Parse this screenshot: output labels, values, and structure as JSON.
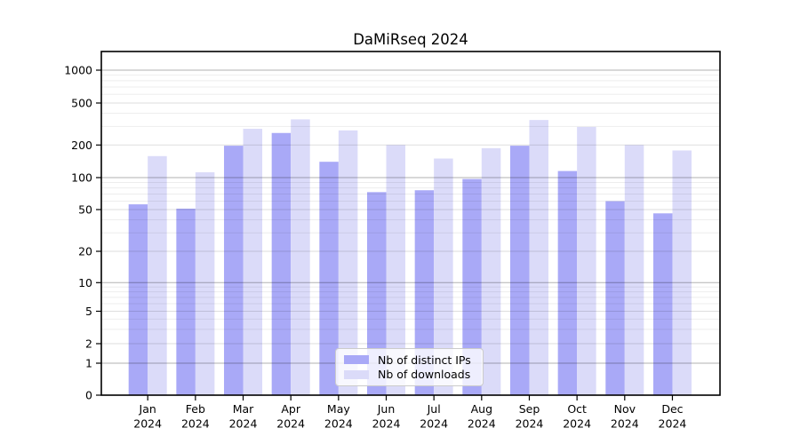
{
  "chart_data": {
    "type": "bar",
    "title": "DaMiRseq 2024",
    "categories": [
      "Jan",
      "Feb",
      "Mar",
      "Apr",
      "May",
      "Jun",
      "Jul",
      "Aug",
      "Sep",
      "Oct",
      "Nov",
      "Dec"
    ],
    "category_year": "2024",
    "series": [
      {
        "name": "Nb of distinct IPs",
        "color": "#a9a9f7",
        "values": [
          56,
          51,
          197,
          260,
          140,
          73,
          76,
          97,
          197,
          115,
          60,
          46
        ]
      },
      {
        "name": "Nb of downloads",
        "color": "#dbdbf9",
        "values": [
          158,
          112,
          285,
          350,
          275,
          200,
          150,
          187,
          345,
          297,
          200,
          178
        ]
      }
    ],
    "y_axis": {
      "scale": "symlog",
      "range": [
        0,
        1000
      ],
      "tick_values": [
        0,
        1,
        2,
        5,
        10,
        20,
        50,
        100,
        200,
        500,
        1000
      ],
      "tick_labels": [
        "0",
        "1",
        "2",
        "5",
        "10",
        "20",
        "50",
        "100",
        "200",
        "500",
        "1000"
      ],
      "major_tick_values": [
        1,
        10,
        100,
        1000
      ],
      "minor_grid_values": [
        3,
        4,
        6,
        7,
        8,
        9,
        30,
        40,
        60,
        70,
        80,
        90,
        300,
        400,
        600,
        700,
        800,
        900
      ]
    },
    "grid": true,
    "grid_above_bars": true,
    "legend_position": "inside-bottom-center",
    "colors": {
      "bar_distinct_ips": "#a9a9f7",
      "bar_downloads": "#dbdbf9",
      "spine": "#000000",
      "background": "#ffffff"
    }
  }
}
